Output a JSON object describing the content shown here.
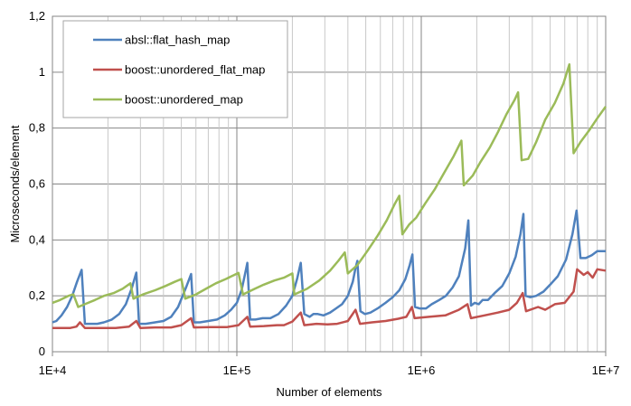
{
  "chart_data": {
    "type": "line",
    "title": "",
    "xlabel": "Number of elements",
    "ylabel": "Microseconds/element",
    "x_scale": "log",
    "xlim": [
      10000,
      10000000
    ],
    "ylim": [
      0,
      1.2
    ],
    "grid": true,
    "legend_position": "top-left",
    "x_tick_labels": [
      {
        "value": 10000,
        "label": "1E+4"
      },
      {
        "value": 100000,
        "label": "1E+5"
      },
      {
        "value": 1000000,
        "label": "1E+6"
      },
      {
        "value": 10000000,
        "label": "1E+7"
      }
    ],
    "y_tick_labels": [
      {
        "value": 0,
        "label": "0"
      },
      {
        "value": 0.2,
        "label": "0,2"
      },
      {
        "value": 0.4,
        "label": "0,4"
      },
      {
        "value": 0.6,
        "label": "0,6"
      },
      {
        "value": 0.8,
        "label": "0,8"
      },
      {
        "value": 1.0,
        "label": "1"
      },
      {
        "value": 1.2,
        "label": "1,2"
      }
    ],
    "series": [
      {
        "name": "absl::flat_hash_map",
        "color": "#4F81BD",
        "points": [
          [
            10000,
            0.105
          ],
          [
            10500,
            0.11
          ],
          [
            11200,
            0.13
          ],
          [
            12000,
            0.16
          ],
          [
            12800,
            0.2
          ],
          [
            13600,
            0.25
          ],
          [
            14400,
            0.293
          ],
          [
            15000,
            0.1
          ],
          [
            16000,
            0.1
          ],
          [
            17500,
            0.1
          ],
          [
            19000,
            0.105
          ],
          [
            21000,
            0.115
          ],
          [
            23000,
            0.135
          ],
          [
            25000,
            0.17
          ],
          [
            27000,
            0.23
          ],
          [
            28500,
            0.283
          ],
          [
            29500,
            0.1
          ],
          [
            32000,
            0.1
          ],
          [
            36000,
            0.105
          ],
          [
            40000,
            0.11
          ],
          [
            44000,
            0.125
          ],
          [
            48000,
            0.16
          ],
          [
            53000,
            0.23
          ],
          [
            56500,
            0.278
          ],
          [
            58500,
            0.105
          ],
          [
            63000,
            0.105
          ],
          [
            70000,
            0.11
          ],
          [
            78000,
            0.115
          ],
          [
            86000,
            0.13
          ],
          [
            93000,
            0.15
          ],
          [
            100000,
            0.175
          ],
          [
            106000,
            0.22
          ],
          [
            111000,
            0.28
          ],
          [
            114000,
            0.318
          ],
          [
            118000,
            0.115
          ],
          [
            126000,
            0.115
          ],
          [
            138000,
            0.12
          ],
          [
            152000,
            0.12
          ],
          [
            168000,
            0.135
          ],
          [
            185000,
            0.165
          ],
          [
            200000,
            0.2
          ],
          [
            212000,
            0.26
          ],
          [
            222000,
            0.318
          ],
          [
            232000,
            0.135
          ],
          [
            248000,
            0.125
          ],
          [
            260000,
            0.135
          ],
          [
            275000,
            0.135
          ],
          [
            295000,
            0.13
          ],
          [
            320000,
            0.14
          ],
          [
            345000,
            0.155
          ],
          [
            372000,
            0.17
          ],
          [
            400000,
            0.2
          ],
          [
            425000,
            0.25
          ],
          [
            440000,
            0.3
          ],
          [
            450000,
            0.325
          ],
          [
            468000,
            0.145
          ],
          [
            495000,
            0.135
          ],
          [
            530000,
            0.14
          ],
          [
            580000,
            0.155
          ],
          [
            640000,
            0.175
          ],
          [
            700000,
            0.195
          ],
          [
            760000,
            0.22
          ],
          [
            820000,
            0.26
          ],
          [
            865000,
            0.31
          ],
          [
            895000,
            0.348
          ],
          [
            925000,
            0.16
          ],
          [
            980000,
            0.155
          ],
          [
            1060000,
            0.155
          ],
          [
            1140000,
            0.17
          ],
          [
            1250000,
            0.185
          ],
          [
            1360000,
            0.2
          ],
          [
            1480000,
            0.23
          ],
          [
            1600000,
            0.27
          ],
          [
            1730000,
            0.37
          ],
          [
            1800000,
            0.47
          ],
          [
            1860000,
            0.165
          ],
          [
            1950000,
            0.175
          ],
          [
            2050000,
            0.17
          ],
          [
            2150000,
            0.185
          ],
          [
            2300000,
            0.185
          ],
          [
            2500000,
            0.21
          ],
          [
            2750000,
            0.235
          ],
          [
            3000000,
            0.28
          ],
          [
            3250000,
            0.34
          ],
          [
            3450000,
            0.42
          ],
          [
            3580000,
            0.493
          ],
          [
            3680000,
            0.2
          ],
          [
            3900000,
            0.195
          ],
          [
            4200000,
            0.2
          ],
          [
            4600000,
            0.215
          ],
          [
            5000000,
            0.24
          ],
          [
            5500000,
            0.27
          ],
          [
            6100000,
            0.33
          ],
          [
            6600000,
            0.42
          ],
          [
            6950000,
            0.505
          ],
          [
            7300000,
            0.335
          ],
          [
            7800000,
            0.335
          ],
          [
            8400000,
            0.345
          ],
          [
            9000000,
            0.36
          ],
          [
            10000000,
            0.36
          ]
        ]
      },
      {
        "name": "boost::unordered_flat_map",
        "color": "#C0504D",
        "points": [
          [
            10000,
            0.085
          ],
          [
            11000,
            0.085
          ],
          [
            12500,
            0.085
          ],
          [
            13500,
            0.09
          ],
          [
            14100,
            0.105
          ],
          [
            15000,
            0.085
          ],
          [
            18000,
            0.085
          ],
          [
            22000,
            0.085
          ],
          [
            26000,
            0.09
          ],
          [
            28500,
            0.11
          ],
          [
            30000,
            0.085
          ],
          [
            36000,
            0.087
          ],
          [
            44000,
            0.087
          ],
          [
            50000,
            0.095
          ],
          [
            56500,
            0.12
          ],
          [
            58500,
            0.087
          ],
          [
            72000,
            0.088
          ],
          [
            88000,
            0.088
          ],
          [
            102000,
            0.095
          ],
          [
            114000,
            0.125
          ],
          [
            118000,
            0.09
          ],
          [
            140000,
            0.092
          ],
          [
            165000,
            0.095
          ],
          [
            180000,
            0.095
          ],
          [
            200000,
            0.108
          ],
          [
            222000,
            0.14
          ],
          [
            232000,
            0.095
          ],
          [
            270000,
            0.1
          ],
          [
            310000,
            0.098
          ],
          [
            350000,
            0.1
          ],
          [
            400000,
            0.11
          ],
          [
            440000,
            0.15
          ],
          [
            465000,
            0.1
          ],
          [
            540000,
            0.105
          ],
          [
            640000,
            0.11
          ],
          [
            750000,
            0.118
          ],
          [
            830000,
            0.125
          ],
          [
            890000,
            0.16
          ],
          [
            920000,
            0.12
          ],
          [
            1100000,
            0.125
          ],
          [
            1350000,
            0.13
          ],
          [
            1600000,
            0.15
          ],
          [
            1780000,
            0.17
          ],
          [
            1860000,
            0.12
          ],
          [
            2200000,
            0.13
          ],
          [
            2600000,
            0.14
          ],
          [
            3000000,
            0.15
          ],
          [
            3300000,
            0.175
          ],
          [
            3550000,
            0.21
          ],
          [
            3700000,
            0.145
          ],
          [
            4300000,
            0.16
          ],
          [
            4700000,
            0.15
          ],
          [
            5300000,
            0.17
          ],
          [
            6000000,
            0.175
          ],
          [
            6700000,
            0.215
          ],
          [
            7000000,
            0.295
          ],
          [
            7600000,
            0.275
          ],
          [
            8000000,
            0.285
          ],
          [
            8500000,
            0.265
          ],
          [
            9000000,
            0.295
          ],
          [
            10000000,
            0.29
          ]
        ]
      },
      {
        "name": "boost::unordered_map",
        "color": "#9BBB59",
        "points": [
          [
            10000,
            0.175
          ],
          [
            11000,
            0.185
          ],
          [
            12200,
            0.2
          ],
          [
            13000,
            0.205
          ],
          [
            13800,
            0.16
          ],
          [
            15000,
            0.17
          ],
          [
            17000,
            0.185
          ],
          [
            19000,
            0.2
          ],
          [
            21500,
            0.21
          ],
          [
            24000,
            0.225
          ],
          [
            26500,
            0.245
          ],
          [
            27500,
            0.19
          ],
          [
            31000,
            0.205
          ],
          [
            36000,
            0.22
          ],
          [
            41000,
            0.235
          ],
          [
            46000,
            0.25
          ],
          [
            50000,
            0.26
          ],
          [
            52500,
            0.19
          ],
          [
            60000,
            0.205
          ],
          [
            68000,
            0.225
          ],
          [
            77000,
            0.245
          ],
          [
            87000,
            0.26
          ],
          [
            97000,
            0.275
          ],
          [
            102000,
            0.282
          ],
          [
            108000,
            0.205
          ],
          [
            125000,
            0.225
          ],
          [
            140000,
            0.24
          ],
          [
            160000,
            0.255
          ],
          [
            180000,
            0.265
          ],
          [
            200000,
            0.28
          ],
          [
            205000,
            0.205
          ],
          [
            240000,
            0.225
          ],
          [
            280000,
            0.255
          ],
          [
            320000,
            0.29
          ],
          [
            355000,
            0.325
          ],
          [
            385000,
            0.355
          ],
          [
            400000,
            0.28
          ],
          [
            450000,
            0.31
          ],
          [
            510000,
            0.36
          ],
          [
            580000,
            0.415
          ],
          [
            650000,
            0.47
          ],
          [
            720000,
            0.53
          ],
          [
            760000,
            0.558
          ],
          [
            790000,
            0.42
          ],
          [
            860000,
            0.455
          ],
          [
            940000,
            0.48
          ],
          [
            1050000,
            0.53
          ],
          [
            1180000,
            0.58
          ],
          [
            1330000,
            0.64
          ],
          [
            1500000,
            0.7
          ],
          [
            1650000,
            0.755
          ],
          [
            1700000,
            0.595
          ],
          [
            1900000,
            0.63
          ],
          [
            2100000,
            0.68
          ],
          [
            2350000,
            0.73
          ],
          [
            2600000,
            0.785
          ],
          [
            2900000,
            0.85
          ],
          [
            3200000,
            0.9
          ],
          [
            3350000,
            0.928
          ],
          [
            3500000,
            0.685
          ],
          [
            3800000,
            0.69
          ],
          [
            4200000,
            0.75
          ],
          [
            4700000,
            0.83
          ],
          [
            5300000,
            0.89
          ],
          [
            5900000,
            0.96
          ],
          [
            6350000,
            1.028
          ],
          [
            6700000,
            0.71
          ],
          [
            7300000,
            0.75
          ],
          [
            8100000,
            0.79
          ],
          [
            9000000,
            0.835
          ],
          [
            10000000,
            0.877
          ]
        ]
      }
    ]
  }
}
